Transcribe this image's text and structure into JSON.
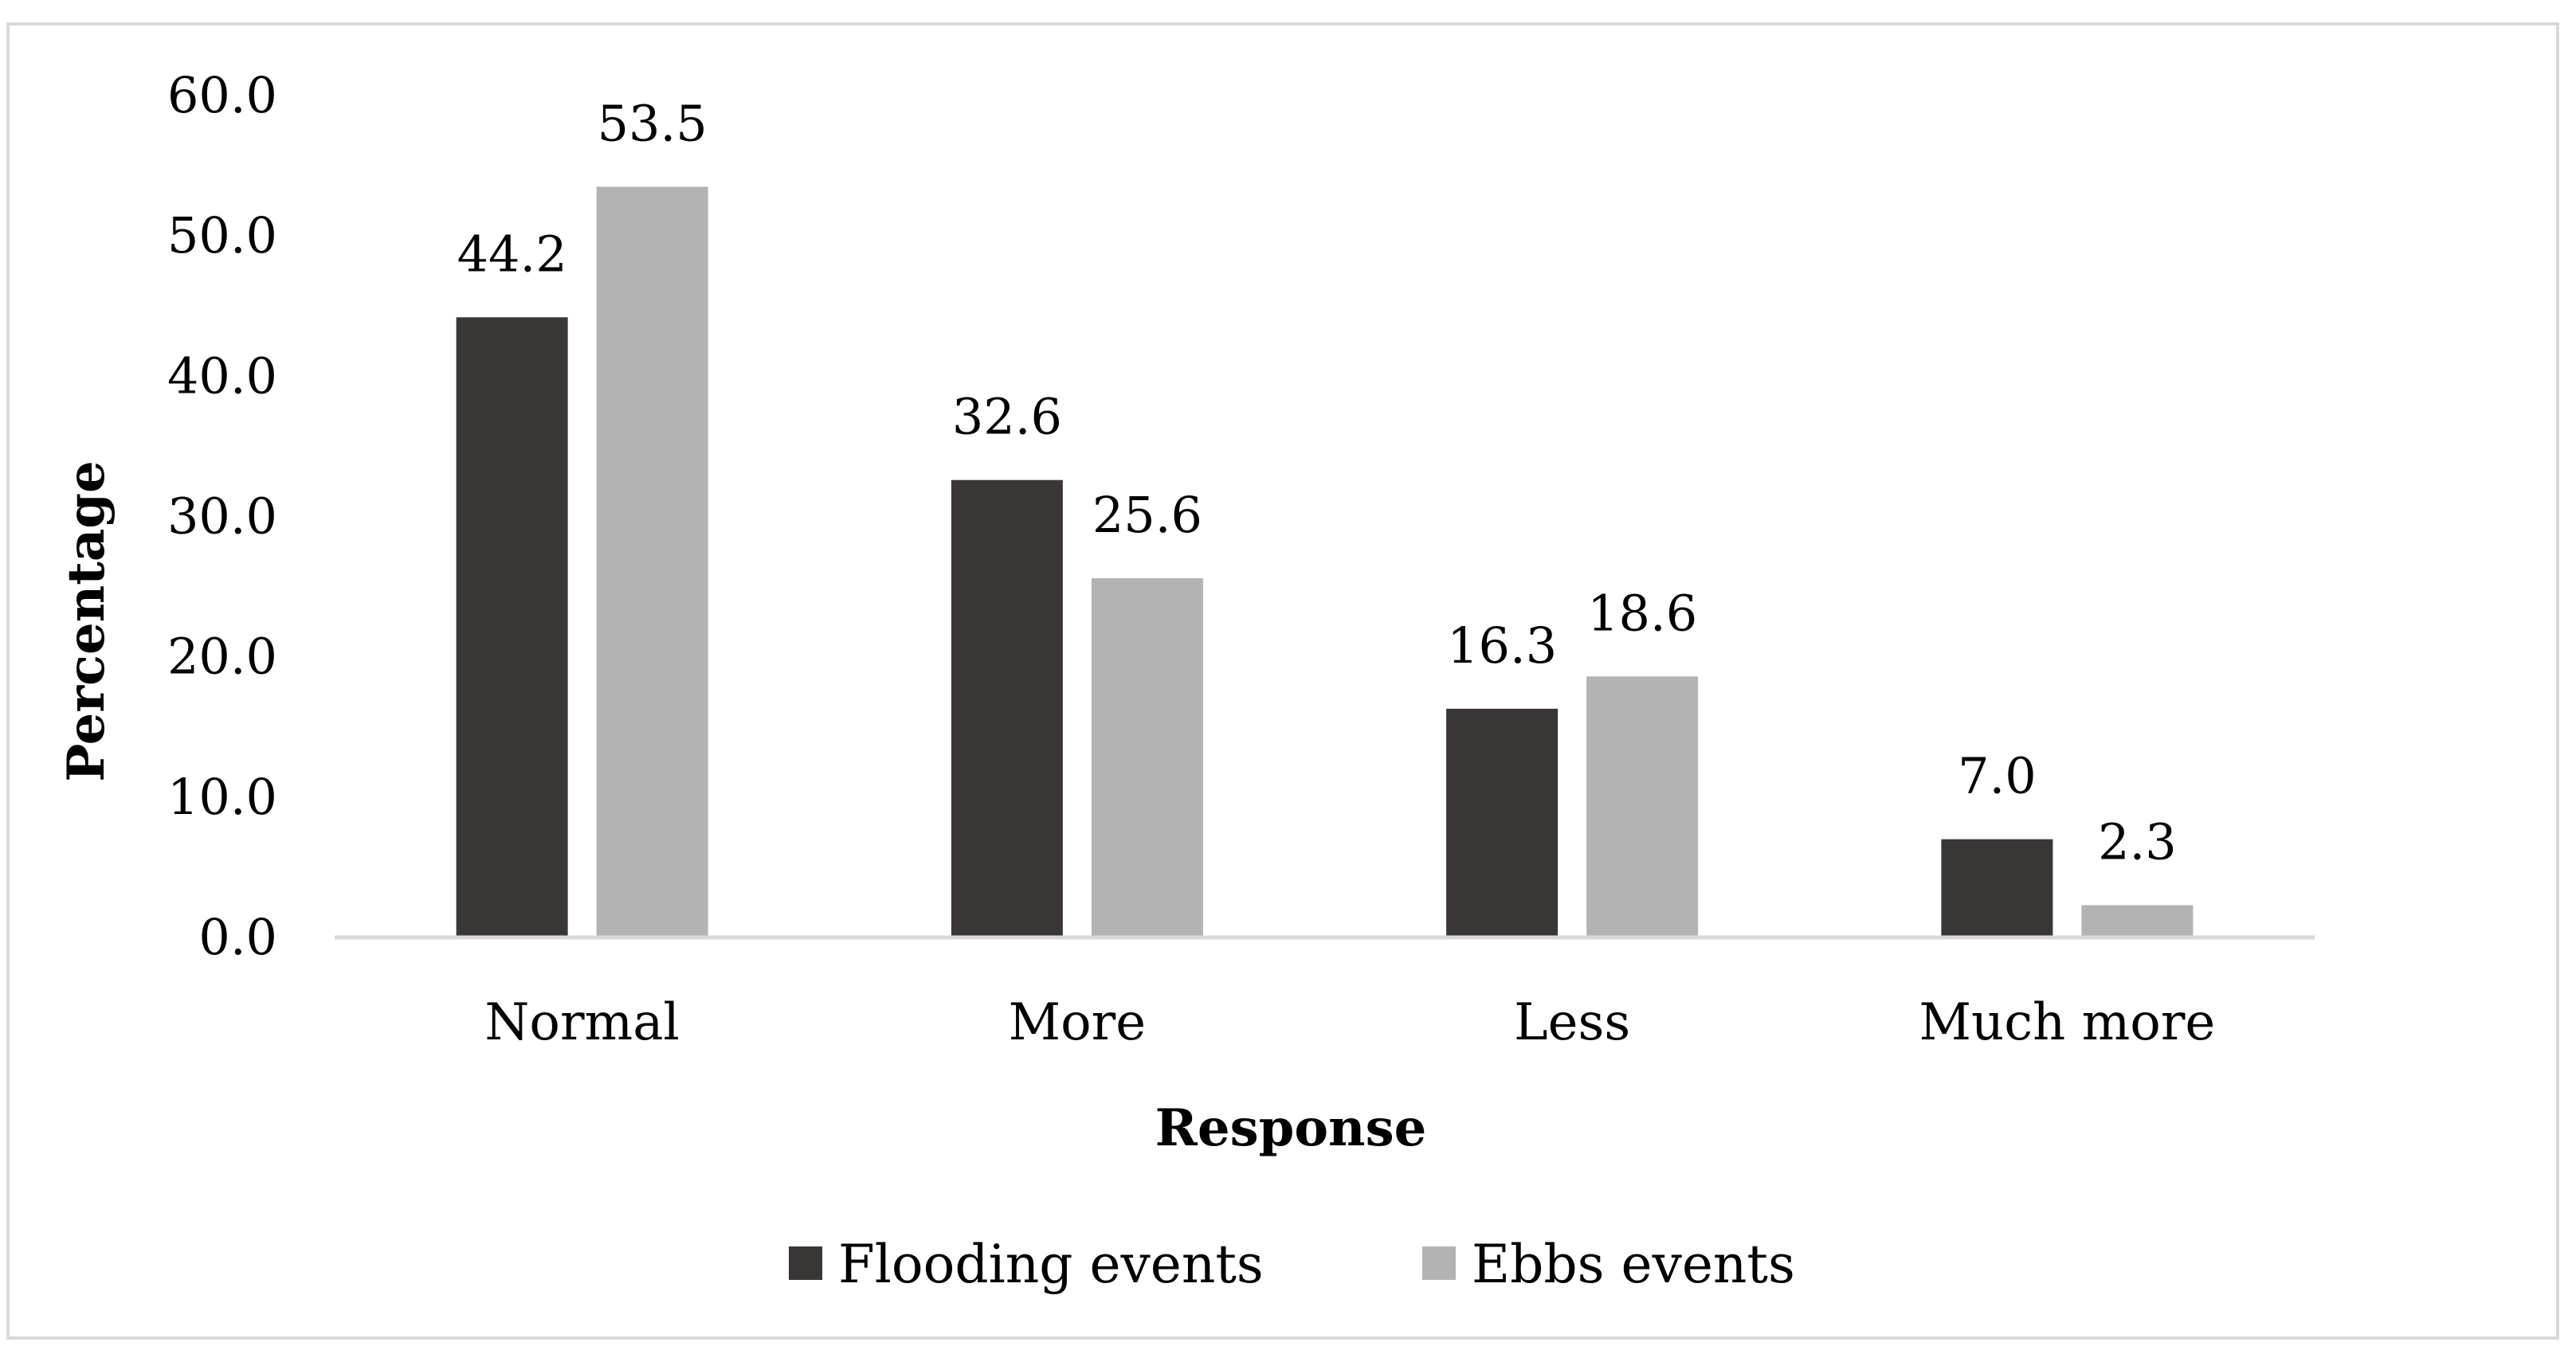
{
  "chart_data": {
    "type": "bar",
    "title": "",
    "xlabel": "Response",
    "ylabel": "Percentage",
    "categories": [
      "Normal",
      "More",
      "Less",
      "Much more"
    ],
    "series": [
      {
        "name": "Flooding events",
        "color": "#3a3636",
        "values": [
          44.2,
          32.6,
          16.3,
          7.0
        ],
        "labels": [
          "44.2",
          "32.6",
          "16.3",
          "7.0"
        ]
      },
      {
        "name": "Ebbs events",
        "color": "#b3b3b3",
        "values": [
          53.5,
          25.6,
          18.6,
          2.3
        ],
        "labels": [
          "53.5",
          "25.6",
          "18.6",
          "2.3"
        ]
      }
    ],
    "ylim": [
      0,
      60
    ],
    "yticks": [
      "0.0",
      "10.0",
      "20.0",
      "30.0",
      "40.0",
      "50.0",
      "60.0"
    ],
    "grid": false,
    "legend_position": "bottom"
  }
}
